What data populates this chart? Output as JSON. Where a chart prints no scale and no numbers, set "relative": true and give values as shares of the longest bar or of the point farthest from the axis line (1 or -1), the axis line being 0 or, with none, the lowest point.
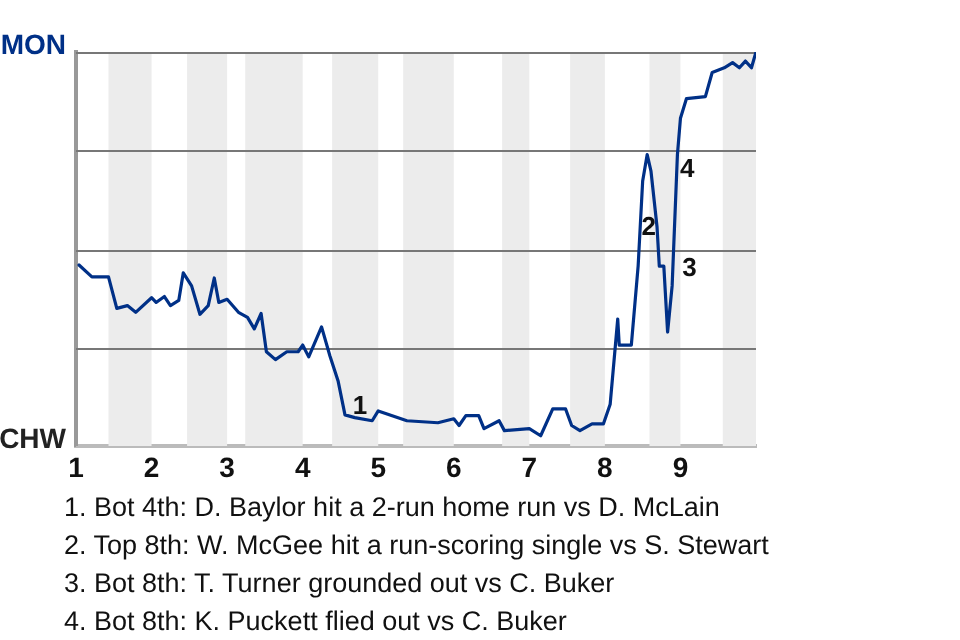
{
  "chart_data": {
    "type": "line",
    "relative": true,
    "xlim": [
      1,
      10
    ],
    "xticks": [
      1,
      2,
      3,
      4,
      5,
      6,
      7,
      8,
      9
    ],
    "legend": false,
    "marker": "none",
    "line_style": "solid",
    "series": [
      {
        "color": "#003087",
        "x": [
          1.04,
          1.21,
          1.43,
          1.54,
          1.68,
          1.79,
          2.0,
          2.06,
          2.17,
          2.25,
          2.36,
          2.42,
          2.53,
          2.64,
          2.75,
          2.83,
          2.89,
          3.0,
          3.15,
          3.27,
          3.36,
          3.45,
          3.52,
          3.64,
          3.79,
          3.94,
          4.0,
          4.08,
          4.25,
          4.36,
          4.47,
          4.56,
          4.69,
          4.92,
          5.0,
          5.38,
          5.79,
          6.0,
          6.07,
          6.16,
          6.33,
          6.4,
          6.6,
          6.67,
          7.0,
          7.15,
          7.31,
          7.48,
          7.56,
          7.67,
          7.83,
          7.98,
          8.07,
          8.17,
          8.19,
          8.35,
          8.44,
          8.5,
          8.56,
          8.61,
          8.69,
          8.72,
          8.78,
          8.83,
          8.89,
          8.96,
          9.0,
          9.08,
          9.33,
          9.42,
          9.58,
          9.69,
          9.78,
          9.86,
          9.94,
          10.0
        ],
        "values": [
          0.46,
          0.43,
          0.43,
          0.35,
          0.357,
          0.34,
          0.377,
          0.365,
          0.38,
          0.357,
          0.37,
          0.44,
          0.407,
          0.335,
          0.357,
          0.427,
          0.365,
          0.373,
          0.34,
          0.327,
          0.298,
          0.337,
          0.24,
          0.22,
          0.24,
          0.24,
          0.257,
          0.227,
          0.303,
          0.23,
          0.165,
          0.08,
          0.073,
          0.065,
          0.09,
          0.065,
          0.06,
          0.07,
          0.053,
          0.078,
          0.078,
          0.045,
          0.065,
          0.04,
          0.045,
          0.027,
          0.095,
          0.095,
          0.053,
          0.04,
          0.057,
          0.057,
          0.107,
          0.323,
          0.257,
          0.257,
          0.457,
          0.673,
          0.74,
          0.698,
          0.557,
          0.457,
          0.457,
          0.29,
          0.407,
          0.74,
          0.832,
          0.882,
          0.887,
          0.948,
          0.96,
          0.973,
          0.96,
          0.977,
          0.96,
          1.0
        ],
        "name": null
      }
    ],
    "bands": [
      {
        "axis": "x",
        "from": 1.43,
        "to": 2,
        "color": "#ececec"
      },
      {
        "axis": "x",
        "from": 2.47,
        "to": 3,
        "color": "#ececec"
      },
      {
        "axis": "x",
        "from": 3.24,
        "to": 4,
        "color": "#ececec"
      },
      {
        "axis": "x",
        "from": 4.39,
        "to": 5,
        "color": "#ececec"
      },
      {
        "axis": "x",
        "from": 5.33,
        "to": 6,
        "color": "#ececec"
      },
      {
        "axis": "x",
        "from": 6.64,
        "to": 7,
        "color": "#ececec"
      },
      {
        "axis": "x",
        "from": 7.54,
        "to": 8,
        "color": "#ececec"
      },
      {
        "axis": "x",
        "from": 8.59,
        "to": 9,
        "color": "#ececec"
      },
      {
        "axis": "x",
        "from": 9.56,
        "to": 10,
        "color": "#ececec"
      }
    ],
    "ref_lines": [
      {
        "axis": "y",
        "value": 0,
        "color": "#bbbbbb",
        "label": "CHW"
      },
      {
        "axis": "y",
        "value": 0.25,
        "color": "#777777"
      },
      {
        "axis": "y",
        "value": 0.5,
        "color": "#777777"
      },
      {
        "axis": "y",
        "value": 0.75,
        "color": "#777777"
      },
      {
        "axis": "y",
        "value": 1,
        "color": "#777777",
        "label": "MON"
      }
    ],
    "annotations": [
      {
        "text": "1",
        "x": 4.76,
        "y": 0.1
      },
      {
        "text": "2",
        "x": 8.58,
        "y": 0.555
      },
      {
        "text": "3",
        "x": 9.12,
        "y": 0.45
      },
      {
        "text": "4",
        "x": 9.09,
        "y": 0.7
      },
      "1. Bot 4th: D. Baylor hit a 2-run home run vs D. McLain",
      "2. Top 8th: W. McGee hit a run-scoring single vs S. Stewart",
      "3. Bot 8th: T. Turner grounded out vs C. Buker",
      "4. Bot 8th: K. Puckett flied out vs C. Buker"
    ]
  }
}
